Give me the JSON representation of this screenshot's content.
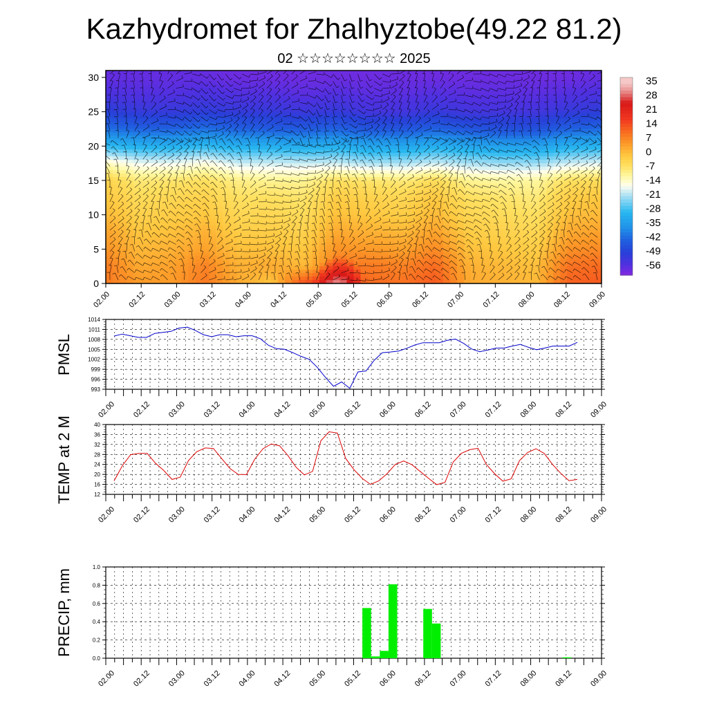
{
  "title": "Kazhydromet for Zhalhyztobe(49.22 81.2)",
  "subtitle": "02 ☆☆☆☆☆☆☆☆ 2025",
  "chart_data": [
    {
      "type": "heatmap",
      "description_panel": "cross-section",
      "x_ticks": [
        "02.00",
        "02.12",
        "03.00",
        "03.12",
        "04.00",
        "04.12",
        "05.00",
        "05.12",
        "06.00",
        "06.12",
        "07.00",
        "07.12",
        "08.00",
        "08.12",
        "09.00"
      ],
      "y_ticks": [
        "0",
        "5",
        "10",
        "15",
        "20",
        "25",
        "30"
      ],
      "ylim": [
        0,
        31
      ],
      "colorbar_labels": [
        "35",
        "28",
        "21",
        "14",
        "7",
        "0",
        "-7",
        "-14",
        "-21",
        "-28",
        "-35",
        "-42",
        "-49",
        "-56"
      ],
      "colorbar_colors": [
        "#f4b8b8",
        "#d81818",
        "#f03020",
        "#f86020",
        "#fc9a28",
        "#ffd040",
        "#fff06a",
        "#ffffe0",
        "#b8e4f4",
        "#28b8f0",
        "#2090e0",
        "#2050d8",
        "#3a30d8",
        "#7a28e0",
        "#8a30e0"
      ],
      "values": [
        [
          0.0,
          10,
          6,
          6,
          10,
          4,
          0,
          16,
          18,
          12,
          11,
          14,
          4,
          3,
          2,
          13,
          14
        ],
        [
          2.5,
          10,
          4,
          5,
          9,
          3,
          4,
          2,
          10,
          10,
          9,
          12,
          3,
          2,
          1,
          11,
          12
        ],
        [
          5.0,
          7,
          2,
          3,
          5,
          1,
          1,
          0,
          7,
          6,
          5,
          8,
          1,
          0,
          -1,
          7,
          8
        ],
        [
          7.5,
          5,
          0,
          1,
          3,
          -1,
          -1,
          -2,
          4,
          3,
          2,
          5,
          -1,
          -2,
          -3,
          4,
          5
        ],
        [
          10,
          2,
          -2,
          -1,
          0,
          -3,
          -3,
          -4,
          1,
          0,
          -1,
          2,
          -3,
          -4,
          -5,
          1,
          2
        ],
        [
          12.5,
          0,
          -4,
          -3,
          -2,
          -5,
          -5,
          -6,
          -1,
          -2,
          -3,
          0,
          -5,
          -6,
          -7,
          -1,
          0
        ],
        [
          15,
          -2,
          -7,
          -6,
          -5,
          -8,
          -9,
          -9,
          -5,
          -6,
          -7,
          -4,
          -9,
          -10,
          -10,
          -5,
          -4
        ],
        [
          17.5,
          -12,
          -16,
          -16,
          -14,
          -18,
          -18,
          -18,
          -18,
          -20,
          -20,
          -18,
          -20,
          -21,
          -21,
          -18,
          -17
        ],
        [
          20,
          -28,
          -30,
          -30,
          -28,
          -30,
          -30,
          -31,
          -30,
          -32,
          -32,
          -30,
          -32,
          -33,
          -33,
          -30,
          -29
        ],
        [
          22.5,
          -40,
          -42,
          -42,
          -40,
          -42,
          -43,
          -43,
          -42,
          -44,
          -44,
          -42,
          -44,
          -45,
          -45,
          -42,
          -41
        ],
        [
          25,
          -48,
          -50,
          -50,
          -49,
          -50,
          -50,
          -51,
          -50,
          -52,
          -52,
          -50,
          -52,
          -52,
          -52,
          -50,
          -49
        ],
        [
          27.5,
          -53,
          -54,
          -54,
          -53,
          -54,
          -54,
          -55,
          -54,
          -55,
          -55,
          -54,
          -55,
          -55,
          -55,
          -54,
          -53
        ],
        [
          30,
          -56,
          -56,
          -56,
          -56,
          -57,
          -57,
          -57,
          -57,
          -57,
          -57,
          -57,
          -57,
          -57,
          -57,
          -57,
          -56
        ]
      ]
    },
    {
      "type": "line",
      "ylabel": "PMSL",
      "x_ticks": [
        "02.00",
        "02.12",
        "03.00",
        "03.12",
        "04.00",
        "04.12",
        "05.00",
        "05.12",
        "06.00",
        "06.12",
        "07.00",
        "07.12",
        "08.00",
        "08.12",
        "09.00"
      ],
      "y_ticks": [
        "1014",
        "1011",
        "1008",
        "1005",
        "1002",
        "999",
        "996",
        "993"
      ],
      "ylim": [
        993,
        1014
      ],
      "color": "#0000cc",
      "values": [
        1009,
        1009.6,
        1009.1,
        1008.6,
        1008.6,
        1009.8,
        1010.1,
        1010.4,
        1011.4,
        1011.7,
        1010.7,
        1009.4,
        1008.8,
        1009.4,
        1009.4,
        1008.8,
        1009.1,
        1009.1,
        1008.2,
        1006.2,
        1005.2,
        1005,
        1004,
        1002.9,
        1002,
        999.6,
        996.6,
        993.9,
        995.2,
        993.3,
        998.2,
        998.5,
        1001.7,
        1004,
        1004.2,
        1004.5,
        1005.3,
        1006.3,
        1007,
        1007,
        1007,
        1007.7,
        1008.1,
        1006.8,
        1005.1,
        1004.3,
        1004.8,
        1005.4,
        1005.4,
        1006,
        1006.5,
        1005.6,
        1004.9,
        1005.4,
        1006,
        1006,
        1006,
        1007.1
      ]
    },
    {
      "type": "line",
      "ylabel": "TEMP at 2 M",
      "x_ticks": [
        "02.00",
        "02.12",
        "03.00",
        "03.12",
        "04.00",
        "04.12",
        "05.00",
        "05.12",
        "06.00",
        "06.12",
        "07.00",
        "07.12",
        "08.00",
        "08.12",
        "09.00"
      ],
      "y_ticks": [
        "40",
        "36",
        "32",
        "28",
        "24",
        "20",
        "16",
        "12"
      ],
      "ylim": [
        12,
        40
      ],
      "color": "#dd0000",
      "values": [
        17.4,
        23.5,
        27.9,
        28.4,
        28.4,
        24.5,
        21.6,
        18,
        18.9,
        25.6,
        29.1,
        30.6,
        30.4,
        26.4,
        22.4,
        20,
        19.9,
        26.1,
        30.3,
        32.2,
        31.5,
        27.6,
        22.9,
        19.8,
        21.2,
        33.5,
        37.1,
        36.6,
        26.4,
        21.9,
        18.4,
        16,
        17.4,
        20.3,
        24,
        25.4,
        23.9,
        21.2,
        18.5,
        15.9,
        16.8,
        25,
        28.5,
        29.9,
        30.5,
        24,
        20.3,
        17.3,
        18.2,
        25.5,
        28.8,
        30.3,
        28.4,
        24,
        20.4,
        17.5,
        18
      ]
    },
    {
      "type": "bar",
      "ylabel": "PRECIP, mm",
      "x_ticks": [
        "02.00",
        "02.12",
        "03.00",
        "03.12",
        "04.00",
        "04.12",
        "05.00",
        "05.12",
        "06.00",
        "06.12",
        "07.00",
        "07.12",
        "08.00",
        "08.12",
        "09.00"
      ],
      "y_ticks": [
        "1.0",
        "0.8",
        "0.6",
        "0.4",
        "0.2",
        "0.0"
      ],
      "ylim": [
        0,
        1.0
      ],
      "color": "#00ee00",
      "bars": [
        {
          "t": 29,
          "value": 0.55
        },
        {
          "t": 30,
          "value": 0.02
        },
        {
          "t": 31,
          "value": 0.08
        },
        {
          "t": 32,
          "value": 0.81
        },
        {
          "t": 36,
          "value": 0.54
        },
        {
          "t": 37,
          "value": 0.38
        },
        {
          "t": 52,
          "value": 0.01
        }
      ]
    }
  ]
}
